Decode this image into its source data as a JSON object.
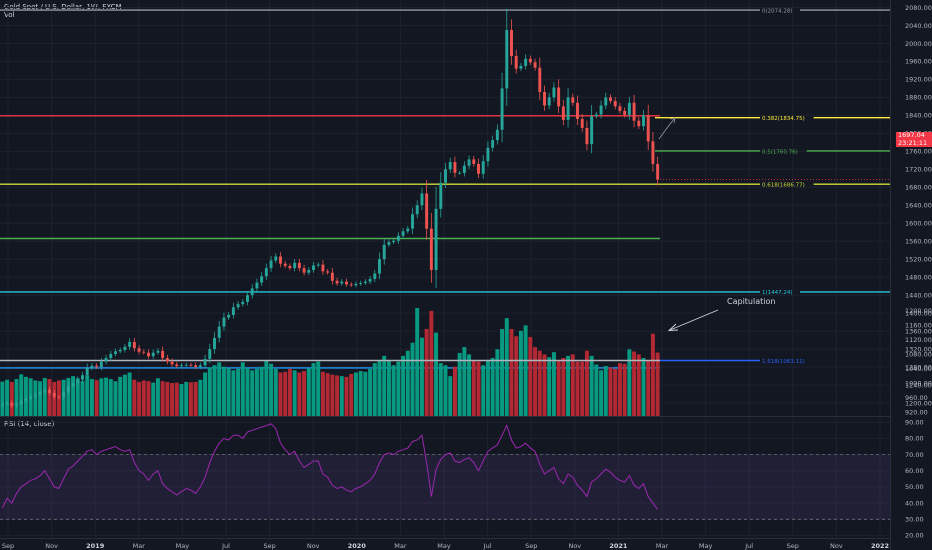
{
  "header": {
    "symbol_title": "Gold Spot / U.S. Dollar, 1W, FXCM",
    "volume_label": "Vol",
    "rsi_label": "RSI (14, close)"
  },
  "price_tag": {
    "value": "1697.04",
    "countdown": "23:21:11"
  },
  "colors": {
    "background": "#131722",
    "up": "#26a69a",
    "down": "#ef5350",
    "vol_up": "#089981",
    "vol_down": "#b22833",
    "rsi_line": "#9c27b0",
    "rsi_band": "#7e57c2",
    "grid": "#1e222d",
    "axis_text": "#b2b5be"
  },
  "chart_data": [
    {
      "type": "candlestick",
      "title": "Gold Spot / U.S. Dollar, 1W, FXCM",
      "ylim": [
        1180,
        2090
      ],
      "y_ticks": [
        2080,
        2040,
        2000,
        1960,
        1920,
        1880,
        1840,
        1800,
        1760,
        1720,
        1680,
        1640,
        1600,
        1560,
        1520,
        1480,
        1440,
        1400,
        1360,
        1320,
        1280,
        1240,
        1200
      ],
      "x_tick_labels": [
        "Sep",
        "Nov",
        "2019",
        "Mar",
        "May",
        "Jul",
        "Sep",
        "Nov",
        "2020",
        "Mar",
        "May",
        "Jul",
        "Sep",
        "Nov",
        "2021",
        "Mar",
        "May",
        "Jul",
        "Sep",
        "Nov",
        "2022"
      ],
      "horizontal_levels": [
        {
          "label": "0(2074.28)",
          "value": 2074.28,
          "color": "#9598a1"
        },
        {
          "label": "0.382(1834.75)",
          "value": 1834.75,
          "color": "#ffeb3b"
        },
        {
          "label": "",
          "value": 1839,
          "color": "#f23645"
        },
        {
          "label": "0.5(1760.76)",
          "value": 1760.76,
          "color": "#4caf50"
        },
        {
          "label": "0.618(1686.77)",
          "value": 1686.77,
          "color": "#cddc39"
        },
        {
          "label": "",
          "value": 1566,
          "color": "#4caf50"
        },
        {
          "label": "1(1447.24)",
          "value": 1447.24,
          "color": "#26c6da"
        },
        {
          "label": "",
          "value": 1278,
          "color": "#2196f3"
        }
      ],
      "last_price": 1697.04,
      "closes": [
        1197,
        1200,
        1194,
        1198,
        1205,
        1210,
        1215,
        1218,
        1224,
        1230,
        1222,
        1214,
        1213,
        1224,
        1238,
        1244,
        1252,
        1262,
        1278,
        1283,
        1280,
        1292,
        1300,
        1309,
        1315,
        1318,
        1325,
        1336,
        1322,
        1314,
        1312,
        1304,
        1312,
        1316,
        1300,
        1292,
        1286,
        1282,
        1284,
        1285,
        1284,
        1280,
        1284,
        1298,
        1320,
        1345,
        1370,
        1390,
        1396,
        1413,
        1420,
        1425,
        1440,
        1455,
        1468,
        1482,
        1500,
        1517,
        1526,
        1510,
        1505,
        1500,
        1512,
        1500,
        1490,
        1496,
        1506,
        1508,
        1493,
        1490,
        1472,
        1466,
        1470,
        1464,
        1462,
        1465,
        1467,
        1470,
        1476,
        1488,
        1520,
        1552,
        1558,
        1561,
        1572,
        1582,
        1588,
        1620,
        1640,
        1666,
        1588,
        1496,
        1632,
        1690,
        1720,
        1736,
        1712,
        1712,
        1728,
        1742,
        1732,
        1710,
        1738,
        1768,
        1785,
        1808,
        1900,
        2030,
        1972,
        1944,
        1950,
        1966,
        1958,
        1946,
        1892,
        1862,
        1880,
        1902,
        1860,
        1830,
        1880,
        1868,
        1832,
        1812,
        1776,
        1838,
        1842,
        1862,
        1880,
        1872,
        1860,
        1850,
        1841,
        1868,
        1828,
        1816,
        1840,
        1782,
        1732,
        1697
      ],
      "volume": {
        "ylim": [
          910,
          1230
        ],
        "y_ticks": [
          1200,
          1160,
          1120,
          1080,
          1040,
          1000,
          960,
          920
        ],
        "reference_level": {
          "label": "1.618(1063.11)",
          "value": 1063.11
        },
        "annotation": "Capitulation",
        "values": [
          1005,
          1010,
          1004,
          1012,
          1025,
          1018,
          1014,
          1008,
          1006,
          1015,
          1012,
          1004,
          1008,
          1010,
          1015,
          1020,
          1014,
          1006,
          1022,
          1012,
          1009,
          1014,
          1016,
          1012,
          1006,
          1018,
          1024,
          1030,
          1010,
          1004,
          1008,
          1006,
          1002,
          1014,
          1006,
          1004,
          1001,
          1002,
          998,
          1004,
          1003,
          1004,
          1010,
          1030,
          1044,
          1050,
          1058,
          1046,
          1042,
          1036,
          1040,
          1058,
          1042,
          1036,
          1040,
          1046,
          1062,
          1054,
          1040,
          1030,
          1032,
          1040,
          1036,
          1030,
          1034,
          1042,
          1056,
          1060,
          1032,
          1028,
          1024,
          1022,
          1020,
          1018,
          1026,
          1030,
          1034,
          1032,
          1040,
          1056,
          1062,
          1076,
          1062,
          1050,
          1060,
          1076,
          1090,
          1112,
          1208,
          1126,
          1150,
          1200,
          1140,
          1056,
          1050,
          1020,
          1046,
          1084,
          1100,
          1080,
          1064,
          1060,
          1050,
          1062,
          1070,
          1094,
          1150,
          1180,
          1150,
          1130,
          1145,
          1160,
          1128,
          1100,
          1090,
          1080,
          1072,
          1086,
          1064,
          1070,
          1076,
          1080,
          1060,
          1060,
          1090,
          1076,
          1052,
          1036,
          1048,
          1044,
          1040,
          1056,
          1054,
          1094,
          1088,
          1080,
          1070,
          1062,
          1137,
          1085
        ]
      },
      "rsi": {
        "ylim": [
          19,
          92
        ],
        "y_ticks": [
          90,
          80,
          70,
          60,
          50,
          40,
          30,
          20
        ],
        "band": [
          30,
          70
        ],
        "values": [
          37,
          43,
          40,
          46,
          50,
          52,
          54,
          55,
          57,
          60,
          55,
          50,
          49,
          55,
          61,
          63,
          66,
          69,
          72,
          73,
          70,
          72,
          73,
          74,
          75,
          73,
          72,
          73,
          65,
          60,
          58,
          54,
          58,
          60,
          52,
          49,
          47,
          45,
          47,
          49,
          48,
          46,
          50,
          56,
          65,
          72,
          77,
          80,
          79,
          82,
          82,
          80,
          84,
          85,
          86,
          87,
          88,
          89,
          86,
          77,
          73,
          70,
          72,
          66,
          62,
          64,
          66,
          66,
          58,
          56,
          51,
          49,
          50,
          48,
          47,
          49,
          50,
          52,
          54,
          58,
          65,
          70,
          71,
          70,
          72,
          73,
          74,
          78,
          79,
          82,
          65,
          44,
          61,
          67,
          70,
          71,
          66,
          65,
          67,
          68,
          65,
          60,
          66,
          72,
          74,
          76,
          82,
          88,
          79,
          74,
          75,
          77,
          74,
          72,
          64,
          58,
          60,
          62,
          55,
          52,
          58,
          56,
          51,
          48,
          44,
          53,
          55,
          58,
          61,
          59,
          56,
          54,
          53,
          57,
          51,
          49,
          52,
          44,
          40,
          36
        ]
      }
    }
  ]
}
